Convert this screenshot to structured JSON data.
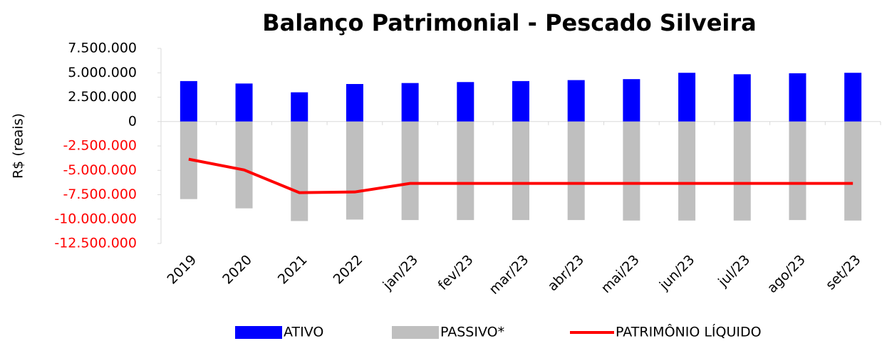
{
  "chart_data": {
    "type": "bar_line",
    "title": "Balanço Patrimonial - Pescado Silveira",
    "y_label": "R$ (reais)",
    "categories": [
      "2019",
      "2020",
      "2021",
      "2022",
      "jan/23",
      "fev/23",
      "mar/23",
      "abr/23",
      "mai/23",
      "jun/23",
      "jul/23",
      "ago/23",
      "set/23"
    ],
    "series": [
      {
        "name": "ATIVO",
        "kind": "bar",
        "color": "#0000ff",
        "values": [
          4150000,
          3900000,
          3000000,
          3850000,
          3950000,
          4050000,
          4150000,
          4250000,
          4350000,
          5000000,
          4850000,
          4950000,
          5000000
        ]
      },
      {
        "name": "PASSIVO*",
        "kind": "bar",
        "color": "#bfbfbf",
        "values": [
          -7950000,
          -8900000,
          -10200000,
          -10050000,
          -10100000,
          -10100000,
          -10100000,
          -10100000,
          -10150000,
          -10150000,
          -10150000,
          -10100000,
          -10150000
        ]
      },
      {
        "name": "PATRIMÔNIO LÍQUIDO",
        "kind": "line",
        "color": "#ff0000",
        "values": [
          -3860000,
          -4960000,
          -7290000,
          -7220000,
          -6340000,
          -6340000,
          -6340000,
          -6340000,
          -6340000,
          -6340000,
          -6340000,
          -6340000,
          -6340000
        ]
      }
    ],
    "ylim": [
      -12500000,
      7500000
    ],
    "yticks": [
      {
        "value": 7500000,
        "label": "7.500.000"
      },
      {
        "value": 5000000,
        "label": "5.000.000"
      },
      {
        "value": 2500000,
        "label": "2.500.000"
      },
      0,
      {
        "value": -2500000,
        "label": "-2.500.000"
      },
      {
        "value": -5000000,
        "label": "-5.000.000"
      },
      {
        "value": -7500000,
        "label": "-7.500.000"
      },
      {
        "value": -10000000,
        "label": "-10.000.000"
      },
      {
        "value": -12500000,
        "label": "-12.500.000"
      }
    ],
    "negative_tick_color": "#ff0000",
    "legend": "bottom"
  }
}
